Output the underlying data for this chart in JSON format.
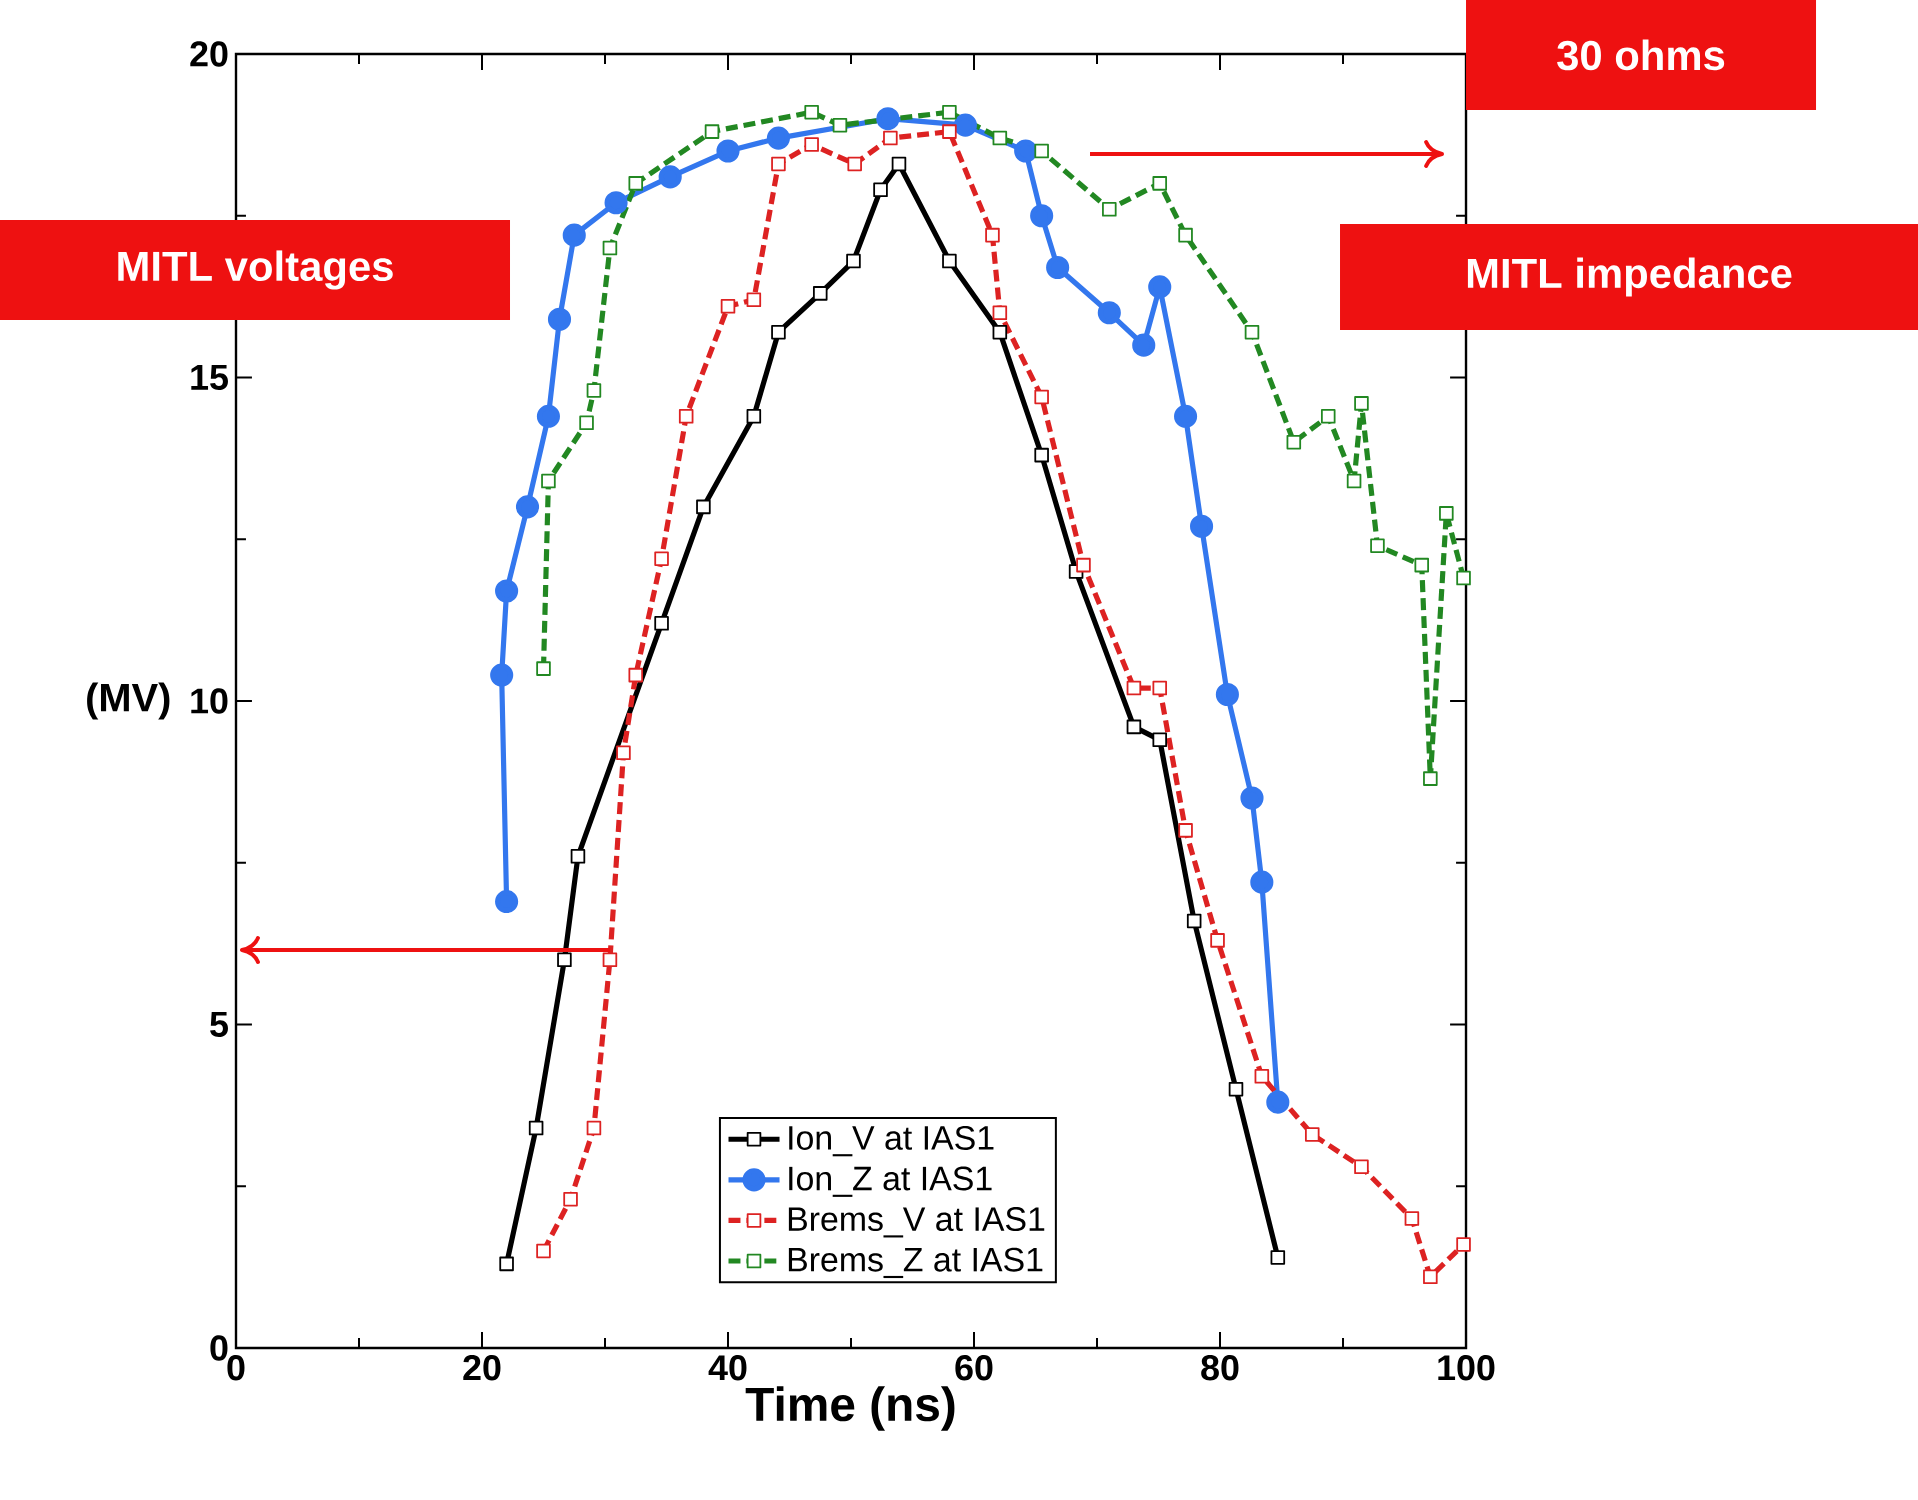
{
  "chart_data": {
    "type": "line",
    "xlabel": "Time (ns)",
    "ylabel": "(MV)",
    "xlim": [
      0,
      100
    ],
    "xticks": [
      0,
      20,
      40,
      60,
      80,
      100
    ],
    "ylim": [
      0,
      20
    ],
    "yticks": [
      0,
      5,
      10,
      15,
      20
    ],
    "legend": "bottom",
    "grid": false,
    "annotations": [
      "MITL voltages",
      "30 ohms",
      "MITL impedance"
    ],
    "series": [
      {
        "name": "Ion_V at IAS1",
        "color": "#000000",
        "marker": "square",
        "line_style": "solid",
        "x": [
          22,
          24.4,
          26.7,
          27.8,
          34.6,
          38,
          42.1,
          44.1,
          47.5,
          50.2,
          52.4,
          53.9,
          58,
          62.1,
          65.5,
          68.3,
          73,
          75.1,
          77.9,
          81.3,
          84.7
        ],
        "values": [
          1.3,
          3.4,
          6.0,
          7.6,
          11.2,
          13.0,
          14.4,
          15.7,
          16.3,
          16.8,
          17.9,
          18.3,
          16.8,
          15.7,
          13.8,
          12.0,
          9.6,
          9.4,
          6.6,
          4.0,
          1.4
        ]
      },
      {
        "name": "Ion_Z at IAS1",
        "color": "#3377ee",
        "marker": "circle",
        "line_style": "solid",
        "x": [
          22,
          21.6,
          22,
          23.7,
          25.4,
          26.3,
          27.5,
          30.9,
          35.3,
          40,
          44.1,
          53,
          59.3,
          64.2,
          65.5,
          66.8,
          71,
          73.8,
          75.1,
          77.2,
          78.5,
          80.6,
          82.6,
          83.4,
          84.7
        ],
        "values": [
          6.9,
          10.4,
          11.7,
          13.0,
          14.4,
          15.9,
          17.2,
          17.7,
          18.1,
          18.5,
          18.7,
          19.0,
          18.9,
          18.5,
          17.5,
          16.7,
          16.0,
          15.5,
          16.4,
          14.4,
          12.7,
          10.1,
          8.5,
          7.2,
          3.8
        ]
      },
      {
        "name": "Brems_V at IAS1",
        "color": "#dd2222",
        "marker": "square",
        "line_style": "dashed",
        "x": [
          25,
          27.2,
          29.1,
          30.4,
          31.5,
          32.5,
          34.6,
          36.6,
          40,
          42.1,
          44.1,
          46.8,
          50.3,
          53.2,
          58,
          61.5,
          62.1,
          65.5,
          68.9,
          73,
          75.1,
          77.2,
          79.8,
          83.4,
          87.5,
          91.5,
          95.6,
          97.1,
          99.8
        ],
        "values": [
          1.5,
          2.3,
          3.4,
          6.0,
          9.2,
          10.4,
          12.2,
          14.4,
          16.1,
          16.2,
          18.3,
          18.6,
          18.3,
          18.7,
          18.8,
          17.2,
          16.0,
          14.7,
          12.1,
          10.2,
          10.2,
          8.0,
          6.3,
          4.2,
          3.3,
          2.8,
          2.0,
          1.1,
          1.6
        ]
      },
      {
        "name": "Brems_Z at IAS1",
        "color": "#228822",
        "marker": "square",
        "line_style": "dashed",
        "x": [
          25,
          25.4,
          28.5,
          29.1,
          30.4,
          32.5,
          38.7,
          46.8,
          49.1,
          58,
          62.1,
          65.5,
          71,
          75.1,
          77.2,
          82.6,
          86,
          88.8,
          90.9,
          91.5,
          92.8,
          96.4,
          97.1,
          98.4,
          99.8
        ],
        "values": [
          10.5,
          13.4,
          14.3,
          14.8,
          17.0,
          18.0,
          18.8,
          19.1,
          18.9,
          19.1,
          18.7,
          18.5,
          17.6,
          18.0,
          17.2,
          15.7,
          14.0,
          14.4,
          13.4,
          14.6,
          12.4,
          12.1,
          8.8,
          12.9,
          11.9
        ]
      }
    ]
  }
}
